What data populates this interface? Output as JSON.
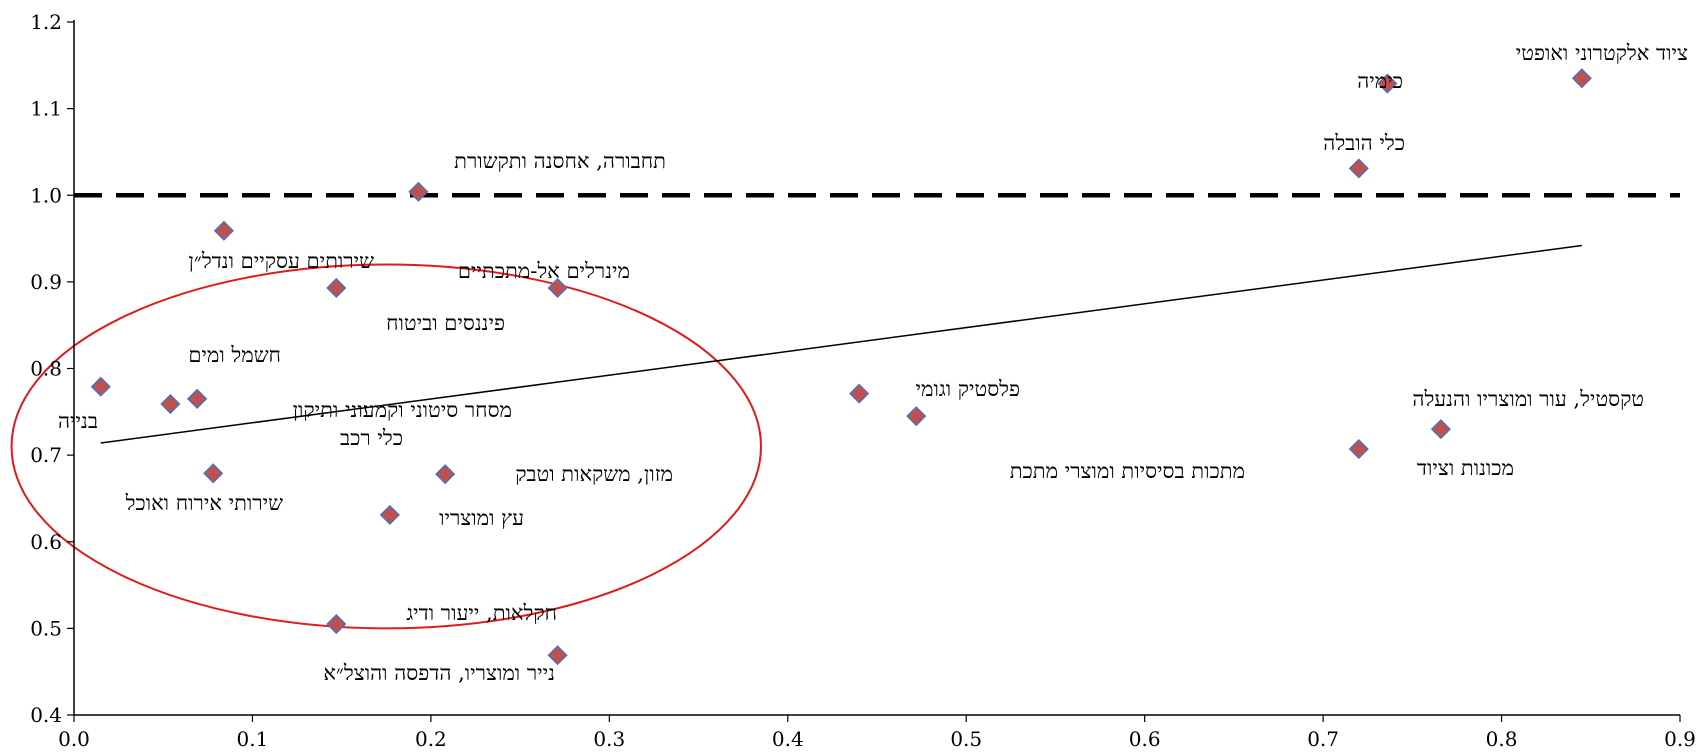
{
  "chart_data": {
    "type": "scatter",
    "title": "",
    "xlabel": "",
    "ylabel": "",
    "xlim": [
      0.0,
      0.9
    ],
    "ylim": [
      0.4,
      1.2
    ],
    "x_ticks": [
      "0.0",
      "0.1",
      "0.2",
      "0.3",
      "0.4",
      "0.5",
      "0.6",
      "0.7",
      "0.8",
      "0.9"
    ],
    "y_ticks": [
      "0.4",
      "0.5",
      "0.6",
      "0.7",
      "0.8",
      "0.9",
      "1.0",
      "1.1",
      "1.2"
    ],
    "grid": false,
    "legend": "none",
    "reference_line": {
      "y": 1.0,
      "style": "dashed",
      "color": "#000000"
    },
    "trend_line": {
      "x1": 0.015,
      "y1": 0.714,
      "x2": 0.845,
      "y2": 0.942,
      "color": "#000000"
    },
    "highlight_ellipse": {
      "color": "#e01b1b",
      "cx": 0.175,
      "cy": 0.71,
      "rx": 0.21,
      "ry": 0.42
    },
    "marker_color": "#c0504d",
    "marker_edge": "#4f6fbf",
    "points": [
      {
        "label": "ציוד אלקטרוני ואופטי",
        "x": 0.845,
        "y": 1.135
      },
      {
        "label": "כימיה",
        "x": 0.736,
        "y": 1.129
      },
      {
        "label": "כלי הובלה",
        "x": 0.72,
        "y": 1.031
      },
      {
        "label": "תחבורה, אחסנה ותקשורת",
        "x": 0.193,
        "y": 1.004
      },
      {
        "label": "שירותים עסקיים ונדל״ן",
        "x": 0.084,
        "y": 0.959
      },
      {
        "label": "פיננסים וביטוח",
        "x": 0.147,
        "y": 0.893
      },
      {
        "label": "מינרלים אל-מתכתיים",
        "x": 0.271,
        "y": 0.893
      },
      {
        "label": "בנייה",
        "x": 0.015,
        "y": 0.779
      },
      {
        "label": "חשמל ומים",
        "x": 0.054,
        "y": 0.759
      },
      {
        "label": "מסחר סיטוני וקמעוני ותיקון",
        "x": 0.069,
        "y": 0.765
      },
      {
        "label": "כלי רכב",
        "x": 0.069,
        "y": 0.765
      },
      {
        "label": "פלסטיק וגומי",
        "x": 0.44,
        "y": 0.771
      },
      {
        "label": "מתכות בסיסיות ומוצרי מתכת",
        "x": 0.472,
        "y": 0.745
      },
      {
        "label": "טקסטיל, עור ומוצריו והנעלה",
        "x": 0.766,
        "y": 0.73
      },
      {
        "label": "מכונות וציוד",
        "x": 0.72,
        "y": 0.707
      },
      {
        "label": "שירותי אירוח ואוכל",
        "x": 0.078,
        "y": 0.679
      },
      {
        "label": "מזון, משקאות וטבק",
        "x": 0.208,
        "y": 0.678
      },
      {
        "label": "עץ ומוצריו",
        "x": 0.177,
        "y": 0.631
      },
      {
        "label": "חקלאות, ייעור ודיג",
        "x": 0.147,
        "y": 0.505
      },
      {
        "label": "נייר ומוצריו, הדפסה והוצל״א",
        "x": 0.271,
        "y": 0.469
      }
    ]
  }
}
